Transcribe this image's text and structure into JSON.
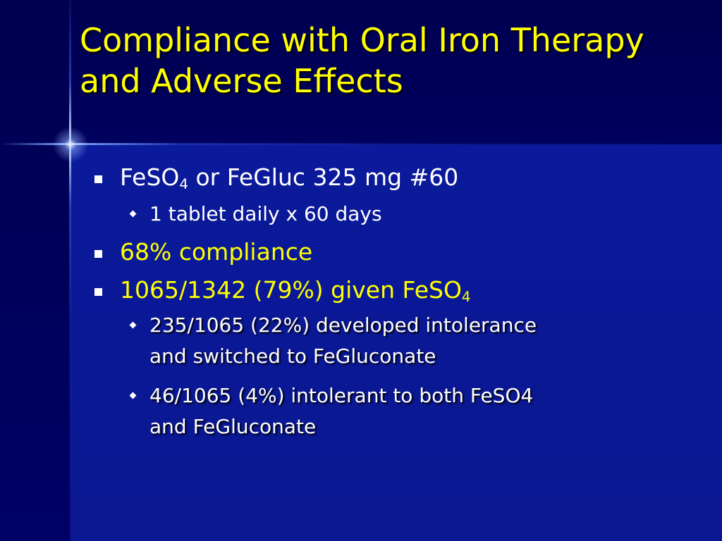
{
  "slide": {
    "title_line1": "Compliance with Oral Iron Therapy",
    "title_line2": "and Adverse Effects",
    "items": [
      {
        "level": 1,
        "parts": [
          "FeSO",
          "4",
          " or FeGluc 325 mg #60"
        ],
        "color": "#ffffff"
      },
      {
        "level": 2,
        "text": "1 tablet daily x 60 days",
        "color": "#ffffff"
      },
      {
        "level": 1,
        "text": "68% compliance",
        "color": "#ffff00"
      },
      {
        "level": 1,
        "parts": [
          "1065/1342 (79%) given FeSO",
          "4"
        ],
        "color": "#ffff00"
      },
      {
        "level": 2,
        "text_line1": "235/1065 (22%) developed intolerance",
        "text_line2": "and switched to FeGluconate",
        "color": "#ffffff"
      },
      {
        "level": 2,
        "text_line1": "46/1065 (4%) intolerant to both FeSO4",
        "text_line2": "and FeGluconate",
        "color": "#ffffff"
      }
    ]
  },
  "colors": {
    "background": "#00007a",
    "title": "#ffff00",
    "body_text": "#ffffff",
    "highlight_text": "#ffff00"
  },
  "icons": {
    "level1_bullet": "square-bullet-icon",
    "level2_bullet": "diamond-bullet-icon"
  }
}
